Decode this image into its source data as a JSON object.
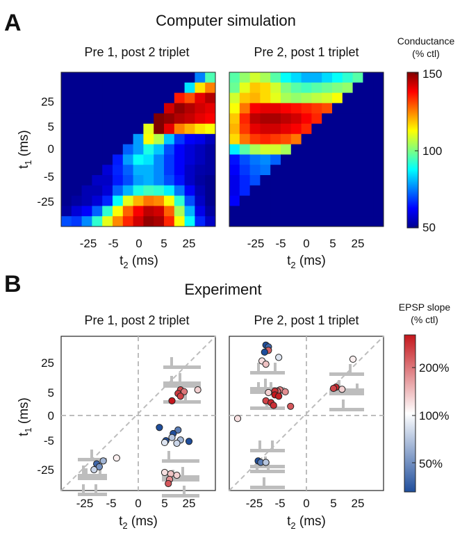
{
  "panelA": {
    "letter": "A",
    "title": "Computer simulation",
    "left_title": "Pre 1, post 2 triplet",
    "right_title": "Pre 2, post 1 triplet",
    "ylabel_base": "t",
    "ylabel_sub": "1",
    "ylabel_units": " (ms)",
    "xlabel_base": "t",
    "xlabel_sub": "2",
    "xlabel_units": " (ms)",
    "yticks": [
      "25",
      "5",
      "0",
      "-5",
      "-25"
    ],
    "xticks": [
      "-25",
      "-5",
      "0",
      "5",
      "25"
    ],
    "colorbar_title_1": "Conductance",
    "colorbar_title_2": "(% ctl)",
    "colorbar_ticks": [
      "150",
      "100",
      "50"
    ]
  },
  "panelB": {
    "letter": "B",
    "title": "Experiment",
    "left_title": "Pre 1, post 2 triplet",
    "right_title": "Pre 2, post 1 triplet",
    "ylabel_base": "t",
    "ylabel_sub": "1",
    "ylabel_units": " (ms)",
    "xlabel_base": "t",
    "xlabel_sub": "2",
    "xlabel_units": " (ms)",
    "yticks": [
      "25",
      "5",
      "0",
      "-5",
      "-25"
    ],
    "xticks": [
      "-25",
      "-5",
      "0",
      "5",
      "25"
    ],
    "colorbar_title_1": "EPSP slope",
    "colorbar_title_2": "(% ctl)",
    "colorbar_ticks": [
      "200%",
      "100%",
      "50%"
    ]
  },
  "chart_data": [
    {
      "type": "heatmap",
      "title": "Pre 1, post 2 triplet",
      "xlabel": "t2 (ms)",
      "ylabel": "t1 (ms)",
      "x_ticks": [
        "-25",
        "-5",
        "0",
        "5",
        "25"
      ],
      "y_ticks": [
        "25",
        "5",
        "0",
        "-5",
        "-25"
      ],
      "colorbar_label": "Conductance (% ctl)",
      "colorbar_range": [
        50,
        150
      ],
      "grid_rows": 15,
      "grid_cols": 15,
      "values": [
        [
          50,
          50,
          50,
          50,
          50,
          50,
          50,
          50,
          50,
          50,
          50,
          50,
          50,
          75,
          95
        ],
        [
          50,
          50,
          50,
          50,
          50,
          50,
          50,
          50,
          50,
          50,
          50,
          50,
          85,
          115,
          125
        ],
        [
          50,
          50,
          50,
          50,
          50,
          50,
          50,
          50,
          50,
          50,
          50,
          135,
          130,
          140,
          145
        ],
        [
          50,
          50,
          50,
          50,
          50,
          50,
          50,
          50,
          50,
          50,
          142,
          148,
          145,
          142,
          140
        ],
        [
          50,
          50,
          50,
          50,
          50,
          50,
          50,
          50,
          50,
          150,
          148,
          145,
          143,
          140,
          138
        ],
        [
          50,
          50,
          50,
          50,
          50,
          50,
          50,
          50,
          110,
          150,
          140,
          125,
          120,
          115,
          112
        ],
        [
          50,
          50,
          50,
          50,
          50,
          50,
          50,
          78,
          112,
          105,
          82,
          68,
          62,
          60,
          55
        ],
        [
          50,
          50,
          50,
          50,
          50,
          50,
          72,
          78,
          90,
          82,
          70,
          62,
          58,
          55,
          52
        ],
        [
          50,
          50,
          50,
          50,
          50,
          65,
          78,
          88,
          85,
          76,
          68,
          62,
          58,
          55,
          52
        ],
        [
          50,
          50,
          50,
          50,
          58,
          66,
          72,
          80,
          80,
          76,
          68,
          62,
          56,
          53,
          52
        ],
        [
          50,
          50,
          50,
          56,
          56,
          65,
          70,
          78,
          80,
          76,
          70,
          64,
          56,
          52,
          50
        ],
        [
          50,
          50,
          54,
          54,
          58,
          72,
          80,
          90,
          94,
          92,
          86,
          74,
          62,
          54,
          50
        ],
        [
          50,
          52,
          54,
          58,
          66,
          88,
          110,
          120,
          126,
          124,
          112,
          92,
          70,
          56,
          50
        ],
        [
          52,
          58,
          62,
          72,
          92,
          112,
          128,
          138,
          144,
          142,
          128,
          104,
          80,
          60,
          52
        ],
        [
          70,
          68,
          76,
          92,
          110,
          124,
          134,
          142,
          148,
          146,
          134,
          112,
          88,
          66,
          56
        ]
      ]
    },
    {
      "type": "heatmap",
      "title": "Pre 2, post 1 triplet",
      "xlabel": "t2 (ms)",
      "ylabel": "t1 (ms)",
      "x_ticks": [
        "-25",
        "-5",
        "0",
        "5",
        "25"
      ],
      "y_ticks": [],
      "colorbar_label": "Conductance (% ctl)",
      "colorbar_range": [
        50,
        150
      ],
      "grid_rows": 15,
      "grid_cols": 15,
      "values": [
        [
          96,
          102,
          108,
          104,
          96,
          88,
          84,
          80,
          80,
          84,
          88,
          92,
          96,
          50,
          50
        ],
        [
          98,
          110,
          118,
          116,
          108,
          100,
          96,
          94,
          96,
          98,
          100,
          102,
          50,
          50,
          50
        ],
        [
          108,
          118,
          120,
          116,
          110,
          104,
          102,
          104,
          106,
          108,
          112,
          50,
          50,
          50,
          50
        ],
        [
          112,
          126,
          138,
          140,
          140,
          138,
          136,
          134,
          132,
          130,
          50,
          50,
          50,
          50,
          50
        ],
        [
          118,
          134,
          144,
          146,
          146,
          144,
          142,
          138,
          134,
          50,
          50,
          50,
          50,
          50,
          50
        ],
        [
          120,
          132,
          140,
          142,
          142,
          140,
          138,
          134,
          50,
          50,
          50,
          50,
          50,
          50,
          50
        ],
        [
          116,
          126,
          132,
          134,
          132,
          130,
          126,
          50,
          50,
          50,
          50,
          50,
          50,
          50,
          50
        ],
        [
          86,
          96,
          104,
          108,
          108,
          104,
          50,
          50,
          50,
          50,
          50,
          50,
          50,
          50,
          50
        ],
        [
          64,
          70,
          74,
          76,
          72,
          50,
          50,
          50,
          50,
          50,
          50,
          50,
          50,
          50,
          50
        ],
        [
          62,
          68,
          72,
          74,
          50,
          50,
          50,
          50,
          50,
          50,
          50,
          50,
          50,
          50,
          50
        ],
        [
          60,
          66,
          70,
          50,
          50,
          50,
          50,
          50,
          50,
          50,
          50,
          50,
          50,
          50,
          50
        ],
        [
          60,
          66,
          50,
          50,
          50,
          50,
          50,
          50,
          50,
          50,
          50,
          50,
          50,
          50,
          50
        ],
        [
          62,
          50,
          50,
          50,
          50,
          50,
          50,
          50,
          50,
          50,
          50,
          50,
          50,
          50,
          50
        ],
        [
          50,
          50,
          50,
          50,
          50,
          50,
          50,
          50,
          50,
          50,
          50,
          50,
          50,
          50,
          50
        ],
        [
          50,
          50,
          50,
          50,
          50,
          50,
          50,
          50,
          50,
          50,
          50,
          50,
          50,
          50,
          50
        ]
      ]
    },
    {
      "type": "scatter",
      "title": "Pre 1, post 2 triplet",
      "xlabel": "t2 (ms)",
      "ylabel": "t1 (ms)",
      "x_ticks": [
        "-25",
        "-5",
        "0",
        "5",
        "25"
      ],
      "y_ticks": [
        "25",
        "5",
        "0",
        "-5",
        "-25"
      ],
      "colorbar_label": "EPSP slope (% ctl)",
      "colorbar_ticks": [
        "200%",
        "100%",
        "50%"
      ],
      "diagonal": true,
      "points": [
        {
          "t2": 18,
          "t1": 6.8,
          "epsp": 170
        },
        {
          "t2": 30,
          "t1": 6.8,
          "epsp": 115
        },
        {
          "t2": 21,
          "t1": 5.6,
          "epsp": 150
        },
        {
          "t2": 16,
          "t1": 4.8,
          "epsp": 180
        },
        {
          "t2": 18,
          "t1": 4.2,
          "epsp": 175
        },
        {
          "t2": 11,
          "t1": 3.2,
          "epsp": 210
        },
        {
          "t2": 4,
          "t1": -2.4,
          "epsp": 45
        },
        {
          "t2": 16,
          "t1": -2.9,
          "epsp": 60
        },
        {
          "t2": 12,
          "t1": -3.6,
          "epsp": 35
        },
        {
          "t2": 11,
          "t1": -4.4,
          "epsp": 80
        },
        {
          "t2": 18,
          "t1": -4.9,
          "epsp": 75
        },
        {
          "t2": 6,
          "t1": -5.1,
          "epsp": 50
        },
        {
          "t2": 25,
          "t1": -5.6,
          "epsp": 45
        },
        {
          "t2": 5,
          "t1": -6.4,
          "epsp": 90
        },
        {
          "t2": 15,
          "t1": -6.9,
          "epsp": 85
        },
        {
          "t2": -4,
          "t1": -17,
          "epsp": 105
        },
        {
          "t2": -11,
          "t1": -19,
          "epsp": 75
        },
        {
          "t2": -16,
          "t1": -21,
          "epsp": 55
        },
        {
          "t2": -14,
          "t1": -23,
          "epsp": 65
        },
        {
          "t2": -18,
          "t1": -25,
          "epsp": 85
        },
        {
          "t2": 5,
          "t1": -27,
          "epsp": 110
        },
        {
          "t2": 10,
          "t1": -28,
          "epsp": 120
        },
        {
          "t2": 15,
          "t1": -29,
          "epsp": 115
        },
        {
          "t2": 9,
          "t1": -32,
          "epsp": 140
        },
        {
          "t2": 8,
          "t1": -35,
          "epsp": 165
        }
      ]
    },
    {
      "type": "scatter",
      "title": "Pre 2, post 1 triplet",
      "xlabel": "t2 (ms)",
      "ylabel": "t1 (ms)",
      "x_ticks": [
        "-25",
        "-5",
        "0",
        "5",
        "25"
      ],
      "y_ticks": [],
      "colorbar_label": "EPSP slope (% ctl)",
      "colorbar_ticks": [
        "200%",
        "100%",
        "50%"
      ],
      "diagonal": true,
      "points": [
        {
          "t2": -16,
          "t1": 35,
          "epsp": 40
        },
        {
          "t2": -14,
          "t1": 34,
          "epsp": 55
        },
        {
          "t2": -14,
          "t1": 32,
          "epsp": 160
        },
        {
          "t2": -17,
          "t1": 31,
          "epsp": 35
        },
        {
          "t2": -6,
          "t1": 28,
          "epsp": 90
        },
        {
          "t2": -19,
          "t1": 26,
          "epsp": 110
        },
        {
          "t2": -16,
          "t1": 24,
          "epsp": 120
        },
        {
          "t2": 21,
          "t1": 27,
          "epsp": 105
        },
        {
          "t2": 7,
          "t1": 8.6,
          "epsp": 190
        },
        {
          "t2": 5,
          "t1": 7.8,
          "epsp": 175
        },
        {
          "t2": 12,
          "t1": 7.2,
          "epsp": 115
        },
        {
          "t2": -5,
          "t1": 6.8,
          "epsp": 145
        },
        {
          "t2": -7,
          "t1": 5.8,
          "epsp": 155
        },
        {
          "t2": -9,
          "t1": 6.0,
          "epsp": 185
        },
        {
          "t2": -4,
          "t1": 5.5,
          "epsp": 140
        },
        {
          "t2": -14,
          "t1": 5.0,
          "epsp": 115
        },
        {
          "t2": -9,
          "t1": 4.5,
          "epsp": 200
        },
        {
          "t2": -6,
          "t1": 4.2,
          "epsp": 195
        },
        {
          "t2": -16,
          "t1": 3.2,
          "epsp": 175
        },
        {
          "t2": -12,
          "t1": 2.8,
          "epsp": 190
        },
        {
          "t2": -10,
          "t1": 2.2,
          "epsp": 185
        },
        {
          "t2": -3,
          "t1": 2.0,
          "epsp": 165
        },
        {
          "t2": -35,
          "t1": -0.6,
          "epsp": 110
        },
        {
          "t2": -22,
          "t1": -19,
          "epsp": 35
        },
        {
          "t2": -20,
          "t1": -20,
          "epsp": 60
        },
        {
          "t2": -16,
          "t1": -20,
          "epsp": 80
        }
      ]
    }
  ]
}
